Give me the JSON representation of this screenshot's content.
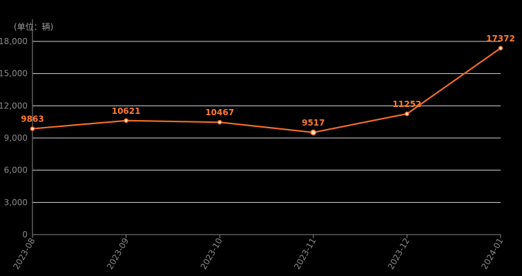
{
  "unit_label": "(单位：辆)",
  "chart_data": {
    "type": "line",
    "categories": [
      "2023-08",
      "2023-09",
      "2023-10",
      "2023-11",
      "2023-12",
      "2024-01"
    ],
    "series": [
      {
        "values": [
          9863,
          10621,
          10467,
          9517,
          11252,
          17372
        ]
      }
    ],
    "data_labels": [
      "9863",
      "10621",
      "10467",
      "9517",
      "11252",
      "17372"
    ],
    "y_ticks": [
      "0",
      "3,000",
      "6,000",
      "9,000",
      "12,000",
      "15,000",
      "18,000"
    ],
    "ylim": [
      0,
      18000
    ],
    "grid": true,
    "colors": {
      "line": "#f26c2a",
      "label": "#ff7a2e",
      "grid": "#ffffff",
      "axis": "#8a8a8a",
      "tick_text": "#8a8a8a",
      "point_fill": "#ffe9d0"
    }
  }
}
